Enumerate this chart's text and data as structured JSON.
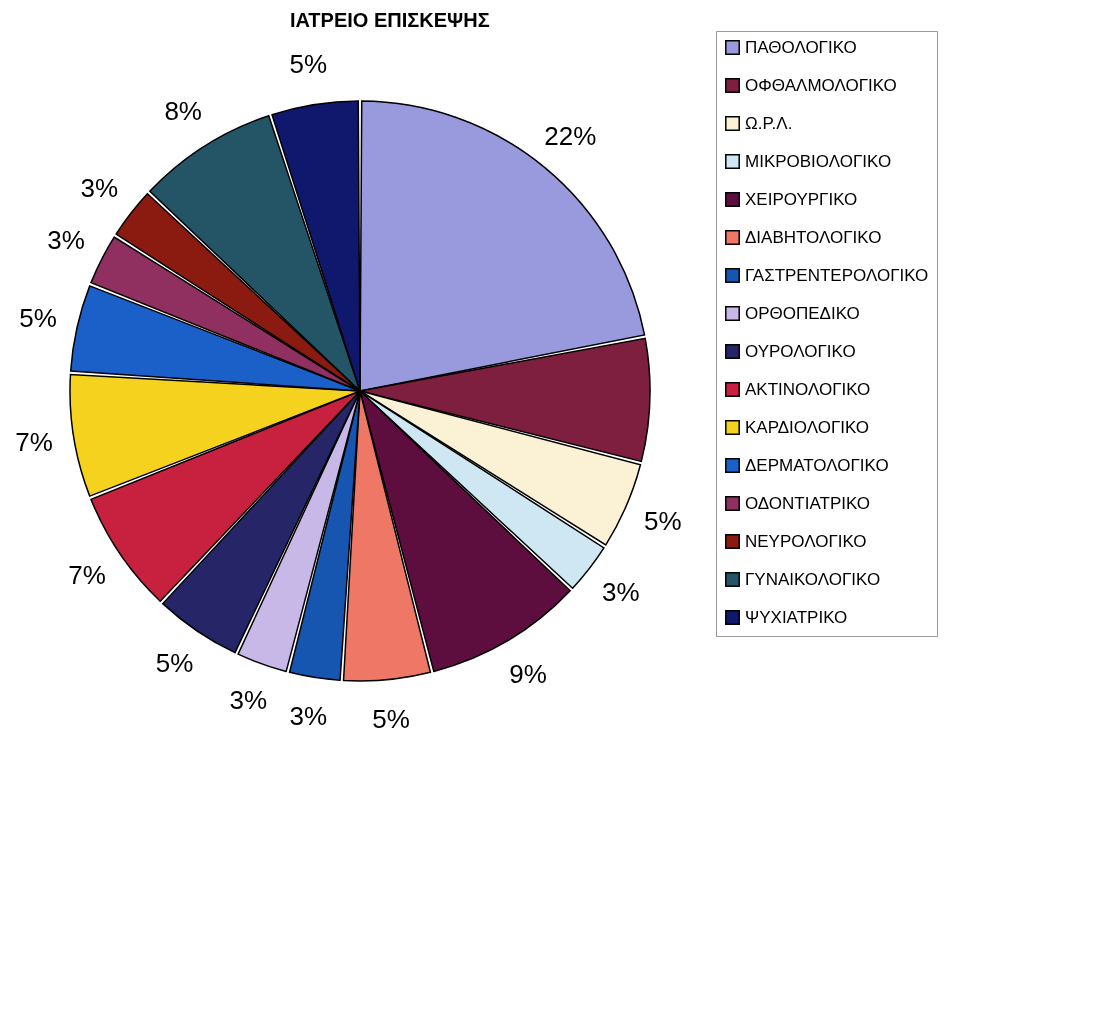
{
  "chart_data": {
    "type": "pie",
    "title": "ΙΑΤΡΕΙΟ ΕΠΙΣΚΕΨΗΣ",
    "categories": [
      "ΠΑΘΟΛΟΓΙΚΟ",
      "ΟΦΘΑΛΜΟΛΟΓΙΚΟ",
      "Ω.Ρ.Λ.",
      "ΜΙΚΡΟΒΙΟΛΟΓΙΚΟ",
      "ΧΕΙΡΟΥΡΓΙΚΟ",
      "ΔΙΑΒΗΤΟΛΟΓΙΚΟ",
      "ΓΑΣΤΡΕΝΤΕΡΟΛΟΓΙΚΟ",
      "ΟΡΘΟΠΕΔΙΚΟ",
      "ΟΥΡΟΛΟΓΙΚΟ",
      "ΑΚΤΙΝΟΛΟΓΙΚΟ",
      "ΚΑΡΔΙΟΛΟΓΙΚΟ",
      "ΔΕΡΜΑΤΟΛΟΓΙΚΟ",
      "ΟΔΟΝΤΙΑΤΡΙΚΟ",
      "ΝΕΥΡΟΛΟΓΙΚΟ",
      "ΓΥΝΑΙΚΟΛΟΓΙΚΟ",
      "ΨΥΧΙΑΤΡΙΚΟ"
    ],
    "values": [
      22,
      7,
      5,
      3,
      9,
      5,
      3,
      3,
      5,
      7,
      7,
      5,
      3,
      3,
      8,
      5
    ],
    "value_labels": [
      "22%",
      null,
      "5%",
      "3%",
      "9%",
      "5%",
      "3%",
      "3%",
      "5%",
      "7%",
      "7%",
      "5%",
      "3%",
      "3%",
      "8%",
      "5%"
    ],
    "colors": [
      "#9999dd",
      "#7f1f3f",
      "#fbf1d5",
      "#cfe7f3",
      "#5e0e3e",
      "#ee7766",
      "#1656b0",
      "#c8b8e8",
      "#252568",
      "#c8203f",
      "#f5d21e",
      "#1a60c8",
      "#903060",
      "#8b1a10",
      "#235566",
      "#10186e"
    ],
    "legend": "right"
  }
}
